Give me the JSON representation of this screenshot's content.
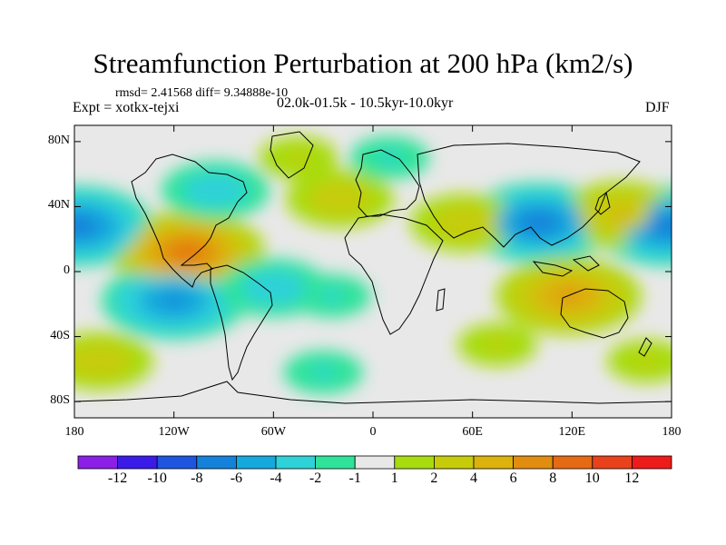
{
  "title": "Streamfunction Perturbation at 200 hPa (km2/s)",
  "stats": "rmsd= 2.41568  diff= 9.34888e-10",
  "experiment": "Expt = xotkx-tejxi",
  "period": "02.0k-01.5k - 10.5kyr-10.0kyr",
  "season": "DJF",
  "map": {
    "projection": "cylindrical equidistant",
    "lon_range": [
      -180,
      180
    ],
    "lat_range": [
      -90,
      90
    ],
    "y_ticks": [
      {
        "label": "80N",
        "value": 80
      },
      {
        "label": "40N",
        "value": 40
      },
      {
        "label": "0",
        "value": 0
      },
      {
        "label": "40S",
        "value": -40
      },
      {
        "label": "80S",
        "value": -80
      }
    ],
    "x_ticks": [
      {
        "label": "180",
        "value": -180
      },
      {
        "label": "120W",
        "value": -120
      },
      {
        "label": "60W",
        "value": -60
      },
      {
        "label": "0",
        "value": 0
      },
      {
        "label": "60E",
        "value": 60
      },
      {
        "label": "120E",
        "value": 120
      },
      {
        "label": "180",
        "value": 180
      }
    ]
  },
  "colorbar": {
    "colors": [
      "#8b1fe6",
      "#3a1be8",
      "#1e55e0",
      "#1482da",
      "#15a9dd",
      "#2fd2d8",
      "#2fe39a",
      "#e8e8e8",
      "#a8dc0e",
      "#c6cc0a",
      "#dcb20c",
      "#e28d10",
      "#e66a14",
      "#e9411b",
      "#ee1b1b"
    ],
    "labels": [
      "-12",
      "-10",
      "-8",
      "-6",
      "-4",
      "-2",
      "-1",
      "1",
      "2",
      "4",
      "6",
      "8",
      "10",
      "12"
    ]
  },
  "field_blobs": [
    {
      "name": "north-pacific-low",
      "lon": -178,
      "lat": 28,
      "value": -7
    },
    {
      "name": "north-pacific-low-west",
      "lon": 178,
      "lat": 28,
      "value": -7
    },
    {
      "name": "mexico-high",
      "lon": -112,
      "lat": 12,
      "value": 8
    },
    {
      "name": "tropical-pacific-low",
      "lon": -120,
      "lat": -18,
      "value": -6
    },
    {
      "name": "asia-low",
      "lon": 100,
      "lat": 30,
      "value": -7
    },
    {
      "name": "indo-australia-high",
      "lon": 118,
      "lat": -15,
      "value": 6
    },
    {
      "name": "arabia-high",
      "lon": 55,
      "lat": 30,
      "value": 3
    },
    {
      "name": "north-atlantic-high",
      "lon": -20,
      "lat": 45,
      "value": 3
    },
    {
      "name": "siberia-low",
      "lon": 10,
      "lat": 70,
      "value": -2
    },
    {
      "name": "greenland-high",
      "lon": -45,
      "lat": 70,
      "value": 2
    },
    {
      "name": "canada-low",
      "lon": -95,
      "lat": 50,
      "value": -3
    },
    {
      "name": "south-pacific-high",
      "lon": -165,
      "lat": -55,
      "value": 3
    },
    {
      "name": "south-ocean-low",
      "lon": -30,
      "lat": -62,
      "value": -2
    },
    {
      "name": "south-atlantic-low",
      "lon": -25,
      "lat": -15,
      "value": -2
    },
    {
      "name": "south-indian-high",
      "lon": 75,
      "lat": -45,
      "value": 2
    },
    {
      "name": "nz-high",
      "lon": 165,
      "lat": -55,
      "value": 2
    },
    {
      "name": "japan-high",
      "lon": 150,
      "lat": 35,
      "value": 4
    },
    {
      "name": "east-pacific-low",
      "lon": -60,
      "lat": -10,
      "value": -3
    }
  ]
}
